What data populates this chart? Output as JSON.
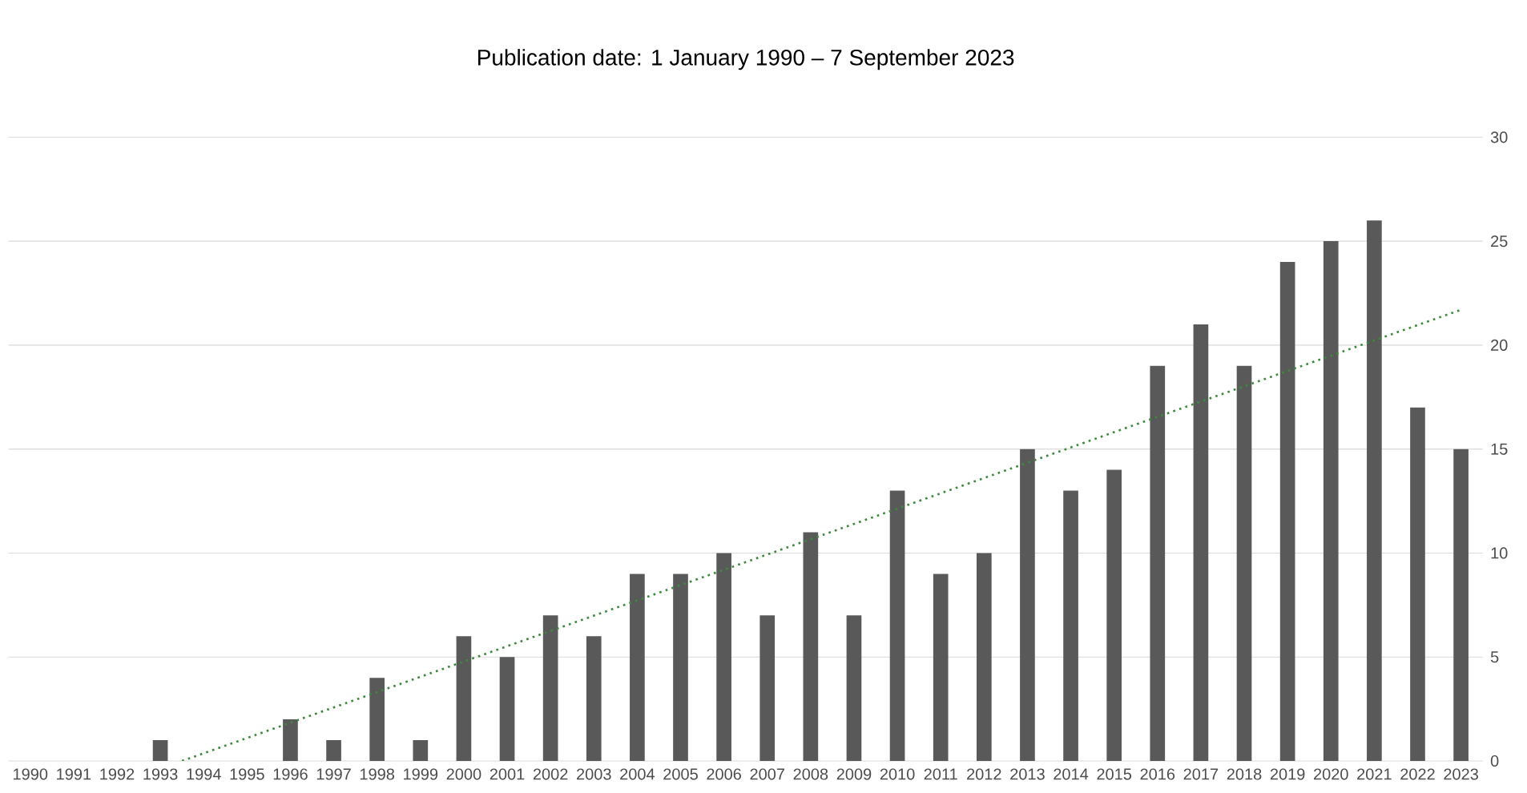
{
  "chart_data": {
    "type": "bar",
    "title": "Publication date: 1 January 1990 – 7 September 2023",
    "x": [
      1990,
      1991,
      1992,
      1993,
      1994,
      1995,
      1996,
      1997,
      1998,
      1999,
      2000,
      2001,
      2002,
      2003,
      2004,
      2005,
      2006,
      2007,
      2008,
      2009,
      2010,
      2011,
      2012,
      2013,
      2014,
      2015,
      2016,
      2017,
      2018,
      2019,
      2020,
      2021,
      2022,
      2023
    ],
    "xlim": [
      1989.5,
      2023.5
    ],
    "xticks": [
      1990,
      1991,
      1992,
      1993,
      1994,
      1995,
      1996,
      1997,
      1998,
      1999,
      2000,
      2001,
      2002,
      2003,
      2004,
      2005,
      2006,
      2007,
      2008,
      2009,
      2010,
      2011,
      2012,
      2013,
      2014,
      2015,
      2016,
      2017,
      2018,
      2019,
      2020,
      2021,
      2022,
      2023
    ],
    "ylim": [
      0,
      30
    ],
    "yticks": [
      0,
      5,
      10,
      15,
      20,
      25,
      30
    ],
    "grid": "y",
    "series": [
      {
        "color": "#595959",
        "values": [
          0,
          0,
          0,
          1,
          0,
          0,
          2,
          1,
          4,
          1,
          6,
          5,
          7,
          6,
          9,
          9,
          10,
          7,
          11,
          7,
          13,
          9,
          10,
          15,
          13,
          14,
          19,
          21,
          19,
          24,
          25,
          26,
          17,
          15
        ]
      },
      {
        "type": "line",
        "color": "#3d8a3d",
        "line_style": "dotted",
        "marker": "none",
        "x": [
          1993.5,
          2023
        ],
        "values": [
          0,
          21.7
        ]
      }
    ]
  }
}
